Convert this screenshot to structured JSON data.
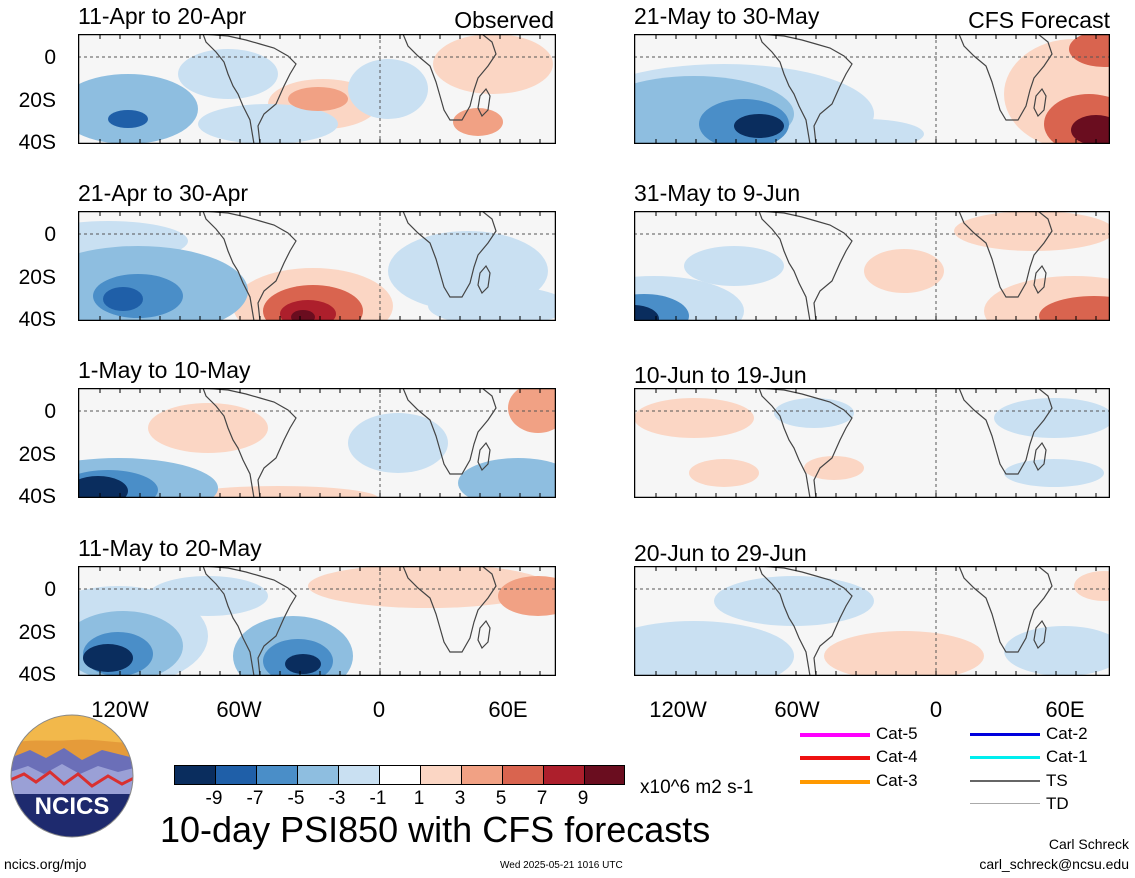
{
  "left_header": "Observed",
  "right_header": "CFS Forecast",
  "panels_left": [
    {
      "title": "11-Apr to 20-Apr"
    },
    {
      "title": "21-Apr to 30-Apr"
    },
    {
      "title": "1-May to 10-May"
    },
    {
      "title": "11-May to 20-May"
    }
  ],
  "panels_right": [
    {
      "title": "21-May to 30-May"
    },
    {
      "title": "31-May to 9-Jun"
    },
    {
      "title": "10-Jun to 19-Jun"
    },
    {
      "title": "20-Jun to 29-Jun"
    }
  ],
  "y_ticks": [
    "0",
    "20S",
    "40S"
  ],
  "x_ticks": [
    "120W",
    "60W",
    "0",
    "60E"
  ],
  "colorbar": {
    "colors": [
      "#0a2d5e",
      "#1f5fa8",
      "#4a8ec8",
      "#8ebee0",
      "#c9e0f2",
      "#ffffff",
      "#fbd6c4",
      "#f1a184",
      "#d9644f",
      "#ad1f2c",
      "#6a0d1f"
    ],
    "labels": [
      "-9",
      "-7",
      "-5",
      "-3",
      "-1",
      "1",
      "3",
      "5",
      "7",
      "9"
    ],
    "units": "x10^6 m2 s-1"
  },
  "legend": {
    "col1": [
      {
        "label": "Cat-5",
        "color": "#ff00ff"
      },
      {
        "label": "Cat-4",
        "color": "#ee1111"
      },
      {
        "label": "Cat-3",
        "color": "#ff9900"
      }
    ],
    "col2": [
      {
        "label": "Cat-2",
        "color": "#0000dd"
      },
      {
        "label": "Cat-1",
        "color": "#00eeee"
      },
      {
        "label": "TS",
        "color": "#666666"
      },
      {
        "label": "TD",
        "color": "#aaaaaa"
      }
    ]
  },
  "logo_text": "NCICS",
  "main_title": "10-day PSI850 with CFS forecasts",
  "footer_left": "ncics.org/mjo",
  "footer_center": "Wed 2025-05-21 1016 UTC",
  "footer_right_name": "Carl Schreck",
  "footer_right_email": "carl_schreck@ncsu.edu"
}
